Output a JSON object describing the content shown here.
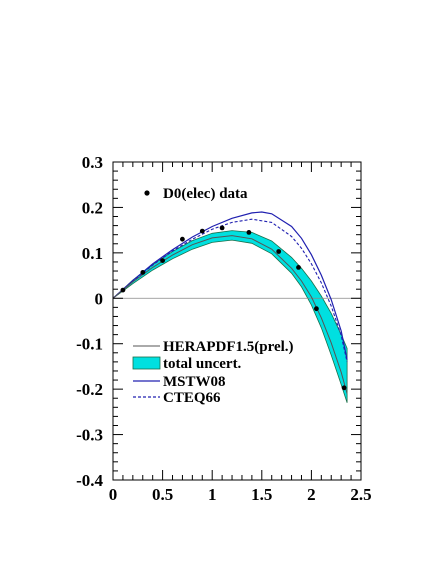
{
  "chart_data": {
    "type": "line",
    "title": "",
    "xlabel": "",
    "ylabel": "",
    "xlim": [
      0,
      2.5
    ],
    "ylim": [
      -0.4,
      0.3
    ],
    "x_ticks": [
      "0",
      "0.5",
      "1",
      "1.5",
      "2",
      "2.5"
    ],
    "y_ticks": [
      "0.3",
      "0.2",
      "0.1",
      "0",
      "-0.1",
      "-0.2",
      "-0.3",
      "-0.4"
    ],
    "grid": false,
    "reference_line_y": 0,
    "data_legend": {
      "label": "D0(elec) data",
      "placement": "top-left"
    },
    "model_legend": {
      "placement": "lower-left",
      "entries": [
        {
          "label": "HERAPDF1.5(prel.)",
          "style": "thin-grey-line"
        },
        {
          "label": "total uncert.",
          "style": "cyan-band"
        },
        {
          "label": "MSTW08",
          "style": "blue-solid"
        },
        {
          "label": "CTEQ66",
          "style": "blue-dashed"
        }
      ]
    },
    "colors": {
      "data": "#000000",
      "herapdf": "#555555",
      "band_fill": "#00e0e0",
      "band_edge": "#1a6f4a",
      "mstw": "#2020b0",
      "cteq": "#2020b0",
      "reference": "#888888"
    },
    "data_points": [
      {
        "x": 0.1,
        "y": 0.018
      },
      {
        "x": 0.3,
        "y": 0.057
      },
      {
        "x": 0.5,
        "y": 0.083
      },
      {
        "x": 0.7,
        "y": 0.13
      },
      {
        "x": 0.9,
        "y": 0.148
      },
      {
        "x": 1.1,
        "y": 0.155
      },
      {
        "x": 1.37,
        "y": 0.145
      },
      {
        "x": 1.67,
        "y": 0.103
      },
      {
        "x": 1.87,
        "y": 0.068
      },
      {
        "x": 2.05,
        "y": -0.023
      },
      {
        "x": 2.33,
        "y": -0.197
      }
    ],
    "series": [
      {
        "name": "HERAPDF1.5(prel.)",
        "x": [
          0,
          0.2,
          0.4,
          0.6,
          0.8,
          1.0,
          1.2,
          1.4,
          1.6,
          1.8,
          1.9,
          2.0,
          2.1,
          2.2,
          2.3,
          2.36
        ],
        "y": [
          0,
          0.036,
          0.068,
          0.095,
          0.118,
          0.133,
          0.138,
          0.131,
          0.108,
          0.066,
          0.038,
          0.003,
          -0.043,
          -0.098,
          -0.163,
          -0.21
        ]
      },
      {
        "name": "total uncert.",
        "x": [
          0,
          0.2,
          0.4,
          0.6,
          0.8,
          1.0,
          1.2,
          1.4,
          1.6,
          1.8,
          1.9,
          2.0,
          2.1,
          2.2,
          2.3,
          2.36
        ],
        "upper": [
          0,
          0.04,
          0.074,
          0.103,
          0.127,
          0.143,
          0.149,
          0.145,
          0.126,
          0.09,
          0.066,
          0.038,
          0.005,
          -0.033,
          -0.08,
          -0.11
        ],
        "lower": [
          0,
          0.032,
          0.062,
          0.087,
          0.108,
          0.123,
          0.128,
          0.121,
          0.098,
          0.055,
          0.025,
          -0.015,
          -0.065,
          -0.125,
          -0.19,
          -0.23
        ]
      },
      {
        "name": "MSTW08",
        "x": [
          0,
          0.2,
          0.4,
          0.6,
          0.8,
          1.0,
          1.2,
          1.4,
          1.5,
          1.6,
          1.8,
          1.9,
          2.0,
          2.1,
          2.2,
          2.3,
          2.36
        ],
        "y": [
          0,
          0.039,
          0.076,
          0.107,
          0.135,
          0.158,
          0.176,
          0.188,
          0.19,
          0.186,
          0.158,
          0.132,
          0.096,
          0.051,
          -0.003,
          -0.072,
          -0.135
        ]
      },
      {
        "name": "CTEQ66",
        "x": [
          0,
          0.2,
          0.4,
          0.6,
          0.8,
          1.0,
          1.2,
          1.4,
          1.6,
          1.8,
          1.9,
          2.0,
          2.1,
          2.2,
          2.3,
          2.36
        ],
        "y": [
          0,
          0.038,
          0.073,
          0.104,
          0.13,
          0.152,
          0.167,
          0.174,
          0.167,
          0.136,
          0.11,
          0.076,
          0.034,
          -0.017,
          -0.082,
          -0.14
        ]
      }
    ]
  }
}
